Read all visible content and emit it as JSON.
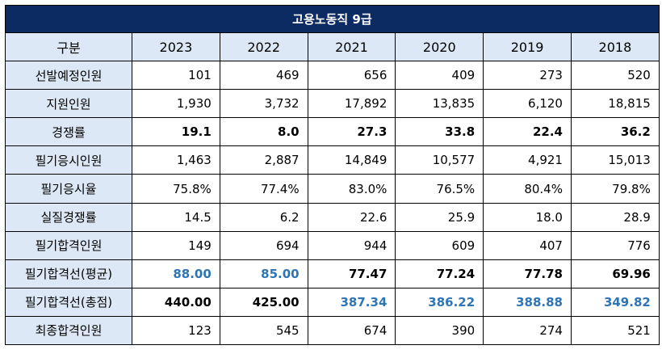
{
  "title": "고용노동직 9급",
  "header": {
    "label": "구분",
    "years": [
      "2023",
      "2022",
      "2021",
      "2020",
      "2019",
      "2018"
    ]
  },
  "rows": [
    {
      "label": "선발예정인원",
      "values": [
        "101",
        "469",
        "656",
        "409",
        "273",
        "520"
      ]
    },
    {
      "label": "지원인원",
      "values": [
        "1,930",
        "3,732",
        "17,892",
        "13,835",
        "6,120",
        "18,815"
      ]
    },
    {
      "label": "경쟁률",
      "values": [
        "19.1",
        "8.0",
        "27.3",
        "33.8",
        "22.4",
        "36.2"
      ]
    },
    {
      "label": "필기응시인원",
      "values": [
        "1,463",
        "2,887",
        "14,849",
        "10,577",
        "4,921",
        "15,013"
      ]
    },
    {
      "label": "필기응시율",
      "values": [
        "75.8%",
        "77.4%",
        "83.0%",
        "76.5%",
        "80.4%",
        "79.8%"
      ]
    },
    {
      "label": "실질경쟁률",
      "values": [
        "14.5",
        "6.2",
        "22.6",
        "25.9",
        "18.0",
        "28.9"
      ]
    },
    {
      "label": "필기합격인원",
      "values": [
        "149",
        "694",
        "944",
        "609",
        "407",
        "776"
      ]
    },
    {
      "label": "필기합격선(평균)",
      "values": [
        "88.00",
        "85.00",
        "77.47",
        "77.24",
        "77.78",
        "69.96"
      ]
    },
    {
      "label": "필기합격선(총점)",
      "values": [
        "440.00",
        "425.00",
        "387.34",
        "386.22",
        "388.88",
        "349.82"
      ]
    },
    {
      "label": "최종합격인원",
      "values": [
        "123",
        "545",
        "674",
        "390",
        "274",
        "521"
      ]
    }
  ],
  "colors": {
    "title_bg": "#0d2b63",
    "header_bg": "#dce8f5",
    "highlight_blue": "#2e75b6"
  }
}
